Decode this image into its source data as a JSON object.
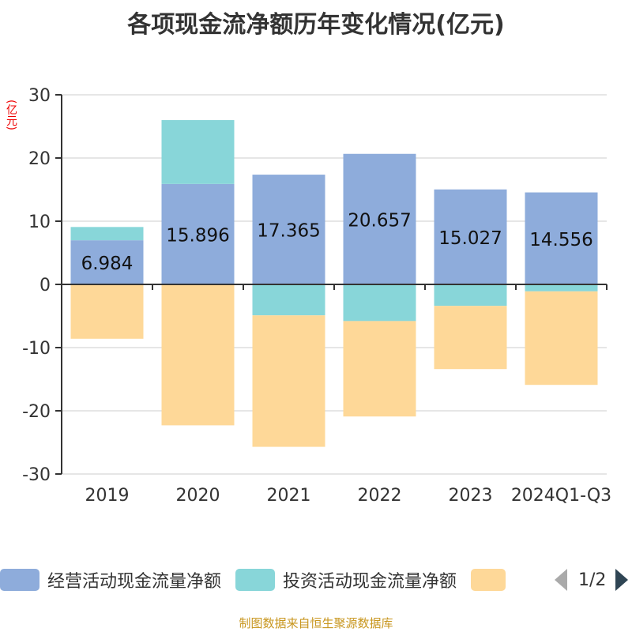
{
  "title": "各项现金流净额历年变化情况(亿元)",
  "source": "制图数据来自恒生聚源数据库",
  "pager": "1/2",
  "chart_data": {
    "type": "bar",
    "stacked": true,
    "title": "各项现金流净额历年变化情况(亿元)",
    "ylabel": "(亿元)",
    "ylim": [
      -30,
      30
    ],
    "yticks": [
      30,
      20,
      10,
      0,
      -10,
      -20,
      -30
    ],
    "grid": true,
    "legend": "bottom",
    "categories": [
      "2019",
      "2020",
      "2021",
      "2022",
      "2023",
      "2024Q1-Q3"
    ],
    "series": [
      {
        "name": "经营活动现金流量净额",
        "color": "#8eacdb",
        "values": [
          6.984,
          15.896,
          17.365,
          20.657,
          15.027,
          14.556
        ],
        "labels": [
          "6.984",
          "15.896",
          "17.365",
          "20.657",
          "15.027",
          "14.556"
        ]
      },
      {
        "name": "投资活动现金流量净额",
        "color": "#88d6d9",
        "values": [
          2.1,
          10.1,
          -4.9,
          -5.8,
          -3.4,
          -1.1
        ]
      },
      {
        "name": "",
        "color": "#fed898",
        "values": [
          -8.6,
          -22.3,
          -20.8,
          -15.1,
          -10.0,
          -14.8
        ]
      }
    ]
  }
}
